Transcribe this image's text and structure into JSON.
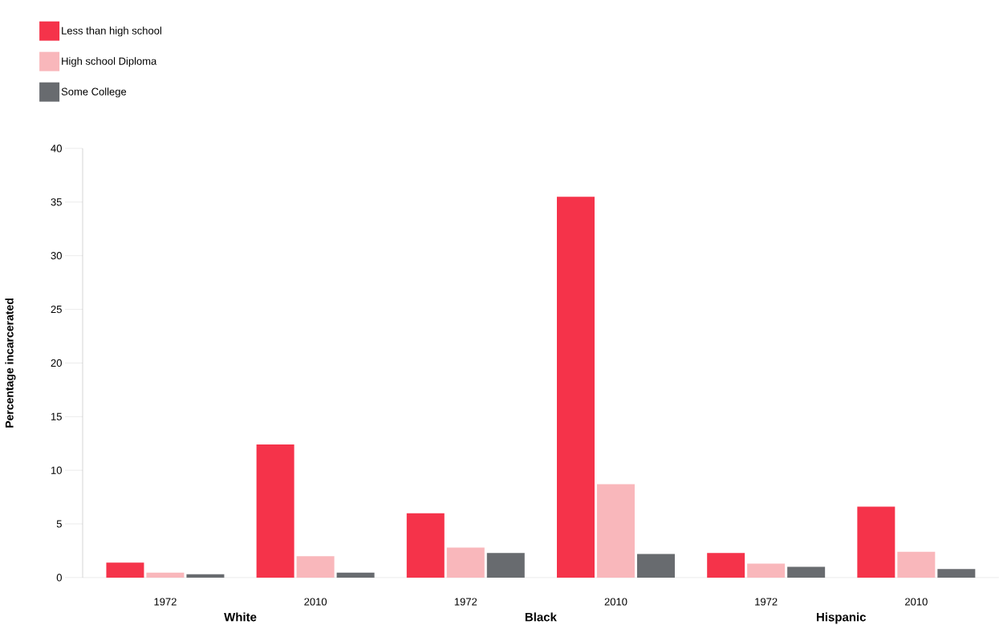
{
  "chart_data": {
    "type": "bar",
    "ylabel": "Percentage incarcerated",
    "categories": [
      "1972",
      "2010",
      "1972",
      "2010",
      "1972",
      "2010"
    ],
    "series": [
      {
        "name": "Less than high school",
        "color": "#f5334a",
        "values": [
          1.4,
          12.4,
          6.0,
          35.5,
          2.3,
          6.6
        ]
      },
      {
        "name": "High school Diploma",
        "color": "#f9b7bb",
        "values": [
          0.45,
          2.0,
          2.8,
          8.7,
          1.3,
          2.4
        ]
      },
      {
        "name": "Some College",
        "color": "#686b6f",
        "values": [
          0.3,
          0.45,
          2.3,
          2.2,
          1.0,
          0.8
        ]
      }
    ],
    "ylim": [
      0,
      40
    ],
    "yticks": [
      0,
      5,
      10,
      15,
      20,
      25,
      30,
      35,
      40
    ],
    "annotations": [
      "White",
      "Black",
      "Hispanic"
    ],
    "legend": "top left",
    "grid": false
  }
}
